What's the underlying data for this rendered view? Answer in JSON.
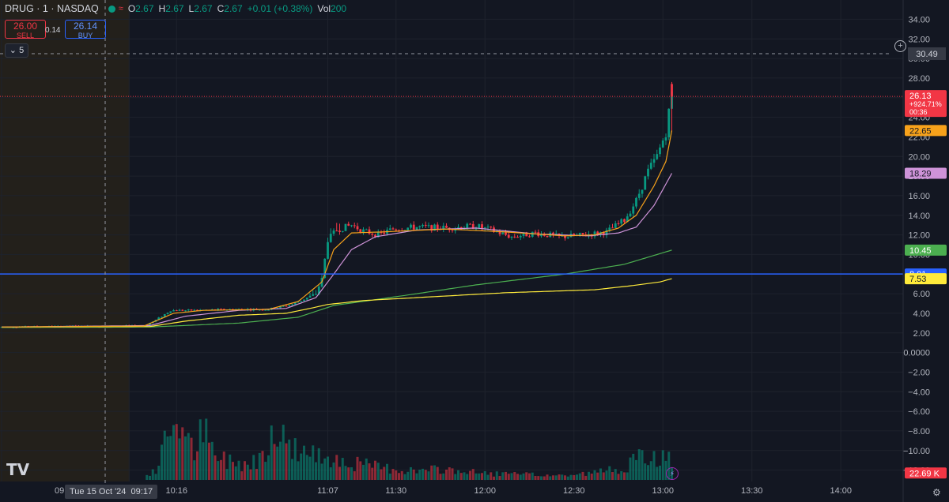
{
  "header": {
    "symbol": "DRUG · 1 · NASDAQ",
    "ohlc": [
      {
        "k": "O",
        "v": "2.67"
      },
      {
        "k": "H",
        "v": "2.67"
      },
      {
        "k": "L",
        "v": "2.67"
      },
      {
        "k": "C",
        "v": "2.67"
      },
      {
        "k": "",
        "v": "+0.01 (+0.38%)"
      },
      {
        "k": "Vol",
        "v": "200"
      }
    ]
  },
  "trade": {
    "sell_price": "26.00",
    "sell_label": "SELL",
    "spread": "0.14",
    "buy_price": "26.14",
    "buy_label": "BUY"
  },
  "collapse_label": "5",
  "logo": "TV",
  "crosshair": {
    "date_label": "Tue 15 Oct '24",
    "time_label": "09:17",
    "price_label": "30.49",
    "partial_time_label": "09"
  },
  "colors": {
    "background": "#131722",
    "grid": "#1e222d",
    "up": "#089981",
    "down": "#f23645",
    "ema_fast": "#f7a21b",
    "ema_mid": "#ce93d8",
    "ema_slow": "#4caf50",
    "vwap": "#ffeb3b",
    "hline": "#2962ff",
    "crosshair": "#9598a1",
    "premarket_shade": "#2a2419"
  },
  "chart_data": {
    "type": "candlestick",
    "title": "DRUG · 1 · NASDAQ",
    "price_axis": {
      "ylim_price": [
        -13,
        35
      ],
      "ticks_price": [
        "34.00",
        "32.00",
        "30.00",
        "28.00",
        "26.00",
        "24.00",
        "22.00",
        "20.00",
        "18.00",
        "16.00",
        "14.00",
        "12.00",
        "10.00",
        "8.00",
        "6.00",
        "4.00",
        "2.00",
        "0.0000"
      ],
      "ticks_volume": [
        "−2.00",
        "−4.00",
        "−6.00",
        "−8.00",
        "−10.00",
        "−12.00"
      ]
    },
    "time_axis": {
      "ticks": [
        {
          "t": 0,
          "label": "09"
        },
        {
          "t": 43,
          "label": "10:00"
        },
        {
          "t": 59,
          "label": "10:16"
        },
        {
          "t": 110,
          "label": "11:07"
        },
        {
          "t": 133,
          "label": "11:30"
        },
        {
          "t": 163,
          "label": "12:00"
        },
        {
          "t": 193,
          "label": "12:30"
        },
        {
          "t": 223,
          "label": "13:00"
        },
        {
          "t": 253,
          "label": "13:30"
        },
        {
          "t": 283,
          "label": "14:00"
        }
      ]
    },
    "price_labels": [
      {
        "value": 26.13,
        "text": "26.13",
        "sub": "+924.71%",
        "sub2": "00:36",
        "color": "#f23645"
      },
      {
        "value": 22.65,
        "text": "22.65",
        "color": "#f7a21b"
      },
      {
        "value": 18.29,
        "text": "18.29",
        "color": "#ce93d8"
      },
      {
        "value": 10.45,
        "text": "10.45",
        "color": "#4caf50"
      },
      {
        "value": 8.01,
        "text": "8.01",
        "color": "#2962ff"
      },
      {
        "value": 7.53,
        "text": "7.53",
        "color": "#ffeb3b"
      }
    ],
    "volume_label": "22.69 K",
    "horizontal_line": 8.01,
    "last_price": 26.13,
    "candle_anchors": [
      [
        0,
        2.6
      ],
      [
        20,
        2.65
      ],
      [
        48,
        2.7
      ],
      [
        52,
        3.3
      ],
      [
        57,
        4.3
      ],
      [
        65,
        4.3
      ],
      [
        78,
        4.4
      ],
      [
        90,
        4.4
      ],
      [
        98,
        4.9
      ],
      [
        106,
        6.0
      ],
      [
        108,
        7.5
      ],
      [
        110,
        11.5
      ],
      [
        113,
        12.5
      ],
      [
        118,
        13.0
      ],
      [
        122,
        12.4
      ],
      [
        127,
        12.0
      ],
      [
        132,
        12.6
      ],
      [
        140,
        12.8
      ],
      [
        150,
        12.7
      ],
      [
        160,
        12.9
      ],
      [
        166,
        12.4
      ],
      [
        172,
        11.8
      ],
      [
        180,
        12.2
      ],
      [
        188,
        11.8
      ],
      [
        194,
        11.9
      ],
      [
        204,
        12.3
      ],
      [
        210,
        13.5
      ],
      [
        214,
        15.5
      ],
      [
        218,
        18.5
      ],
      [
        221,
        20.0
      ],
      [
        224,
        22.5
      ],
      [
        226,
        26.5
      ]
    ],
    "ema_fast_anchors": [
      [
        0,
        2.6
      ],
      [
        48,
        2.7
      ],
      [
        58,
        4.0
      ],
      [
        68,
        4.3
      ],
      [
        90,
        4.4
      ],
      [
        100,
        5.2
      ],
      [
        108,
        7.2
      ],
      [
        112,
        10.5
      ],
      [
        118,
        12.2
      ],
      [
        128,
        12.3
      ],
      [
        150,
        12.6
      ],
      [
        170,
        12.3
      ],
      [
        190,
        11.9
      ],
      [
        200,
        12.0
      ],
      [
        208,
        12.7
      ],
      [
        214,
        14.0
      ],
      [
        220,
        17.0
      ],
      [
        224,
        19.5
      ],
      [
        226,
        22.65
      ]
    ],
    "ema_mid_anchors": [
      [
        0,
        2.6
      ],
      [
        50,
        2.75
      ],
      [
        62,
        3.7
      ],
      [
        80,
        4.3
      ],
      [
        96,
        4.5
      ],
      [
        106,
        5.6
      ],
      [
        112,
        8.0
      ],
      [
        118,
        10.5
      ],
      [
        126,
        11.8
      ],
      [
        140,
        12.5
      ],
      [
        160,
        12.7
      ],
      [
        180,
        12.1
      ],
      [
        198,
        11.9
      ],
      [
        208,
        12.2
      ],
      [
        214,
        12.8
      ],
      [
        220,
        15.0
      ],
      [
        226,
        18.29
      ]
    ],
    "ema_slow_anchors": [
      [
        0,
        2.55
      ],
      [
        50,
        2.6
      ],
      [
        80,
        3.0
      ],
      [
        100,
        3.6
      ],
      [
        106,
        4.2
      ],
      [
        112,
        4.8
      ],
      [
        124,
        5.3
      ],
      [
        140,
        6.0
      ],
      [
        160,
        6.9
      ],
      [
        190,
        8.0
      ],
      [
        210,
        9.0
      ],
      [
        226,
        10.45
      ]
    ],
    "vwap_anchors": [
      [
        0,
        2.6
      ],
      [
        50,
        2.65
      ],
      [
        62,
        3.2
      ],
      [
        80,
        3.8
      ],
      [
        96,
        4.0
      ],
      [
        104,
        4.5
      ],
      [
        110,
        4.9
      ],
      [
        122,
        5.3
      ],
      [
        140,
        5.6
      ],
      [
        170,
        6.1
      ],
      [
        200,
        6.4
      ],
      [
        212,
        6.8
      ],
      [
        222,
        7.2
      ],
      [
        226,
        7.53
      ]
    ],
    "volume_anchors": [
      [
        0,
        0.1
      ],
      [
        48,
        0.3
      ],
      [
        52,
        1.0
      ],
      [
        55,
        4.0
      ],
      [
        57,
        6.0
      ],
      [
        60,
        7.5
      ],
      [
        62,
        4.0
      ],
      [
        65,
        3.5
      ],
      [
        68,
        5.5
      ],
      [
        72,
        2.5
      ],
      [
        80,
        2.0
      ],
      [
        84,
        1.8
      ],
      [
        88,
        3.0
      ],
      [
        92,
        7.0
      ],
      [
        95,
        4.5
      ],
      [
        100,
        3.5
      ],
      [
        106,
        2.5
      ],
      [
        110,
        3.0
      ],
      [
        116,
        2.0
      ],
      [
        126,
        1.5
      ],
      [
        140,
        1.0
      ],
      [
        150,
        1.2
      ],
      [
        160,
        0.8
      ],
      [
        175,
        0.6
      ],
      [
        190,
        0.5
      ],
      [
        200,
        0.8
      ],
      [
        210,
        1.5
      ],
      [
        216,
        2.5
      ],
      [
        222,
        2.5
      ],
      [
        226,
        2.2
      ]
    ]
  }
}
